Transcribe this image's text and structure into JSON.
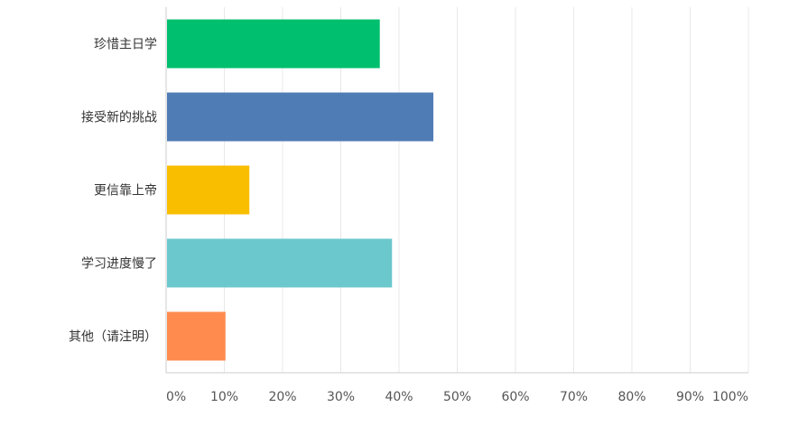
{
  "chart_data": {
    "type": "bar",
    "orientation": "horizontal",
    "categories": [
      "珍惜主日学",
      "接受新的挑战",
      "更信靠上帝",
      "学习进度慢了",
      "其他（请注明）"
    ],
    "values": [
      36.7,
      45.9,
      14.3,
      38.8,
      10.2
    ],
    "colors": [
      "#00bf6f",
      "#507cb6",
      "#f9be00",
      "#6bc8cd",
      "#ff8b4f"
    ],
    "x_ticks": [
      "0%",
      "10%",
      "20%",
      "30%",
      "40%",
      "50%",
      "60%",
      "70%",
      "80%",
      "90%",
      "100%"
    ],
    "xlim": [
      0,
      100
    ],
    "grid": true,
    "grid_color": "#e8e8e8",
    "axis_color": "#cccccc",
    "legend": "none"
  }
}
